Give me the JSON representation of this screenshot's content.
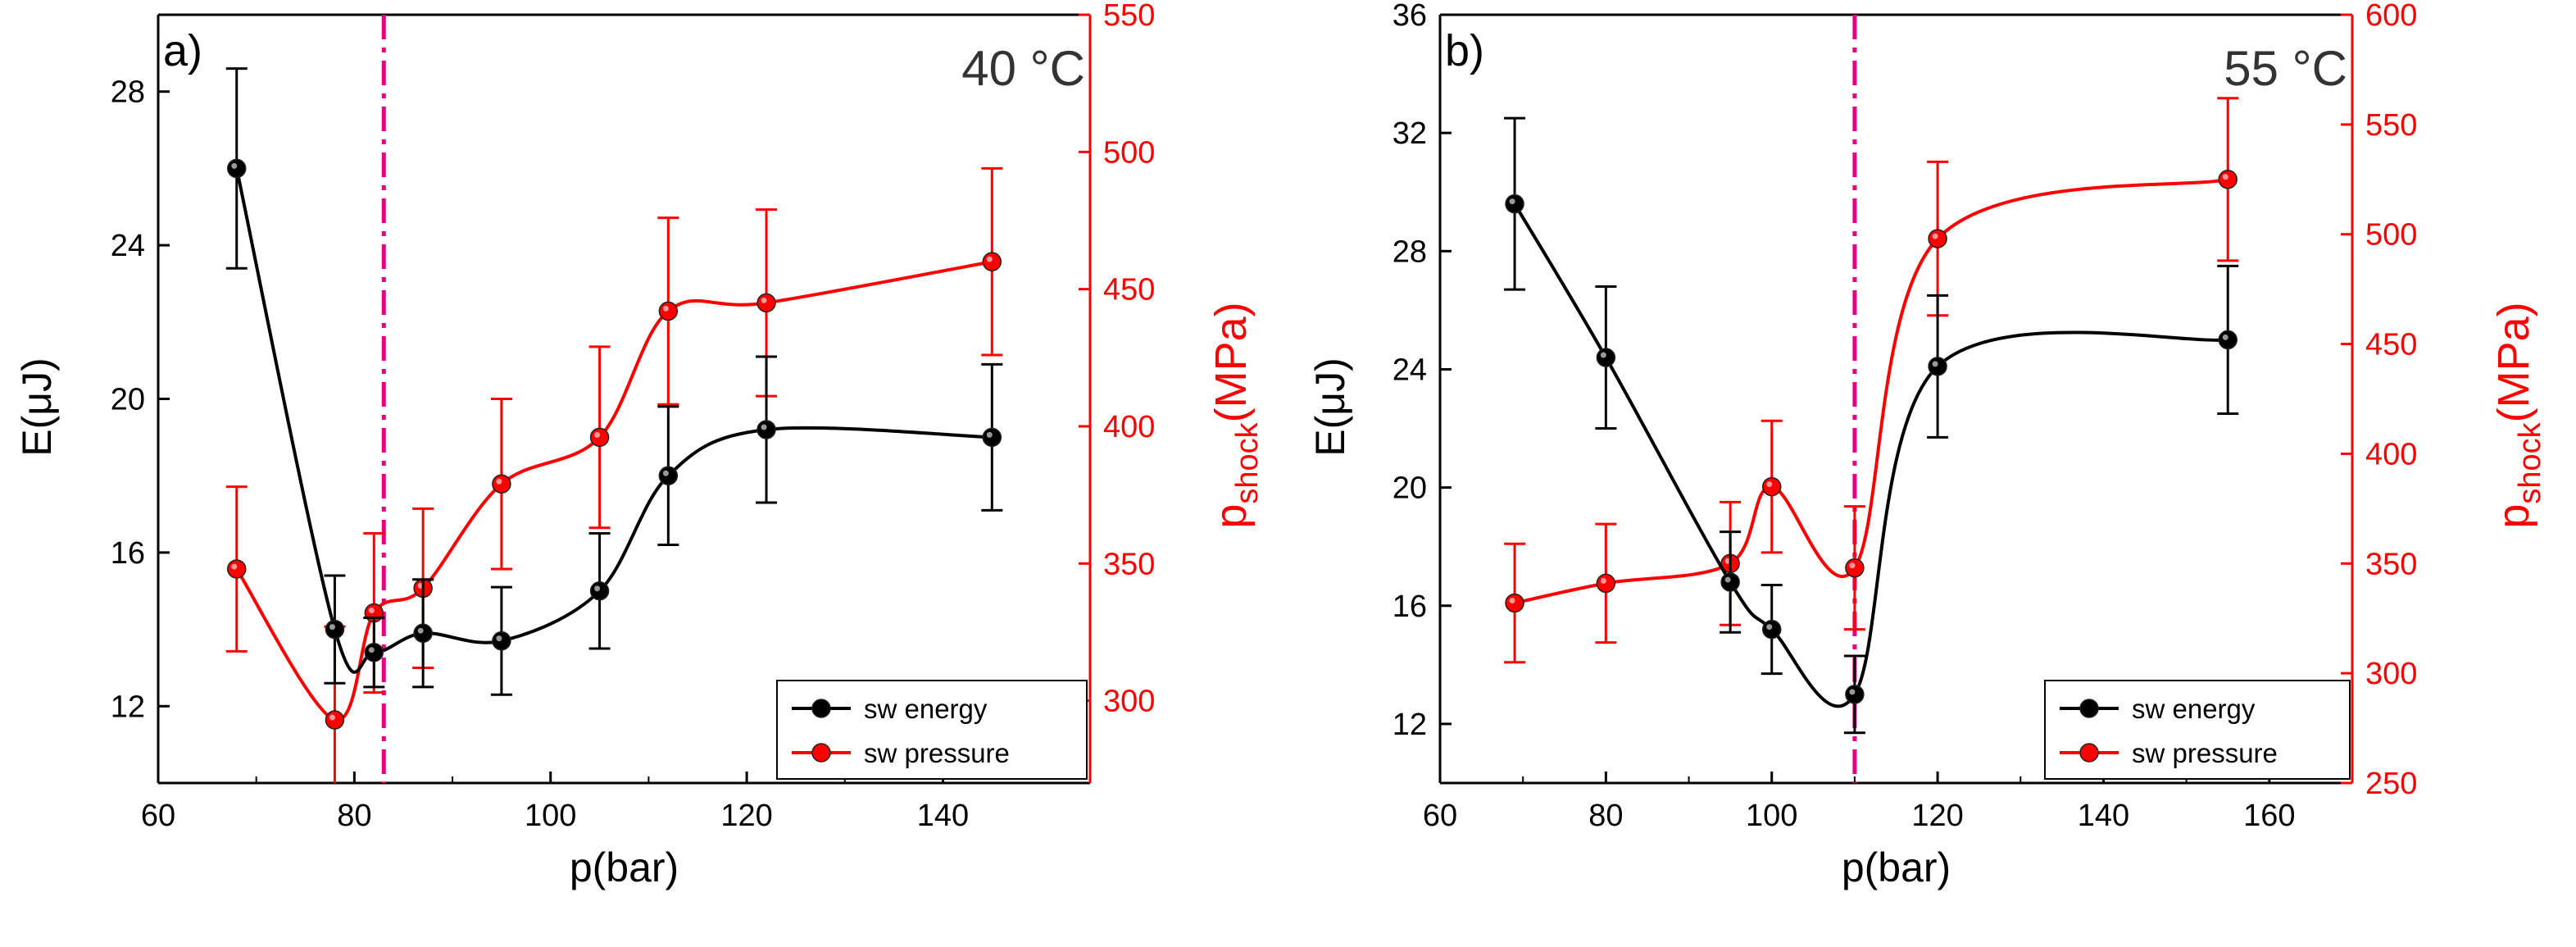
{
  "colors": {
    "energy": "#000000",
    "pressure": "#ff0000",
    "marker": "#e6007e",
    "axis": "#000000"
  },
  "chart_data": [
    {
      "type": "line",
      "panel_label": "a)",
      "temperature": "40 °C",
      "xlabel": "p(bar)",
      "ylabel": "E(μJ)",
      "y2label_main": "p",
      "y2label_sub": "shock",
      "y2label_unit": "(MPa)",
      "xlim": [
        60,
        155
      ],
      "ylim": [
        10,
        30
      ],
      "y2lim": [
        270,
        550
      ],
      "xticks": [
        60,
        80,
        100,
        120,
        140
      ],
      "yticks": [
        12,
        16,
        20,
        24,
        28
      ],
      "y2ticks": [
        300,
        350,
        400,
        450,
        500,
        550
      ],
      "vline": 83,
      "legend": {
        "position": "bottom-right",
        "entries": [
          "sw energy",
          "sw pressure"
        ]
      },
      "series": [
        {
          "name": "sw energy",
          "axis": "left",
          "x": [
            68,
            78,
            82,
            87,
            95,
            105,
            112,
            122,
            145
          ],
          "y": [
            26.0,
            14.0,
            13.4,
            13.9,
            13.7,
            15.0,
            18.0,
            19.2,
            19.0
          ],
          "err": [
            2.6,
            1.4,
            0.9,
            1.4,
            1.4,
            1.5,
            1.8,
            1.9,
            1.9
          ]
        },
        {
          "name": "sw pressure",
          "axis": "right",
          "x": [
            68,
            78,
            82,
            87,
            95,
            105,
            112,
            122,
            145
          ],
          "y": [
            348,
            293,
            332,
            341,
            379,
            396,
            442,
            445,
            460
          ],
          "err": [
            30,
            34,
            29,
            29,
            31,
            33,
            34,
            34,
            34
          ]
        }
      ]
    },
    {
      "type": "line",
      "panel_label": "b)",
      "temperature": "55 °C",
      "xlabel": "p(bar)",
      "ylabel": "E(μJ)",
      "y2label_main": "p",
      "y2label_sub": "shock",
      "y2label_unit": "(MPa)",
      "xlim": [
        60,
        170
      ],
      "ylim": [
        10,
        36
      ],
      "y2lim": [
        250,
        600
      ],
      "xticks": [
        60,
        80,
        100,
        120,
        140,
        160
      ],
      "yticks": [
        12,
        16,
        20,
        24,
        28,
        32,
        36
      ],
      "y2ticks": [
        250,
        300,
        350,
        400,
        450,
        500,
        550,
        600
      ],
      "vline": 110,
      "legend": {
        "position": "bottom-right",
        "entries": [
          "sw energy",
          "sw pressure"
        ]
      },
      "series": [
        {
          "name": "sw energy",
          "axis": "left",
          "x": [
            69,
            80,
            95,
            100,
            110,
            120,
            155
          ],
          "y": [
            29.6,
            24.4,
            16.8,
            15.2,
            13.0,
            24.1,
            25.0
          ],
          "err": [
            2.9,
            2.4,
            1.7,
            1.5,
            1.3,
            2.4,
            2.5
          ]
        },
        {
          "name": "sw pressure",
          "axis": "right",
          "x": [
            69,
            80,
            95,
            100,
            110,
            120,
            155
          ],
          "y": [
            332,
            341,
            350,
            385,
            348,
            498,
            525
          ],
          "err": [
            27,
            27,
            28,
            30,
            28,
            35,
            37
          ]
        }
      ]
    }
  ]
}
